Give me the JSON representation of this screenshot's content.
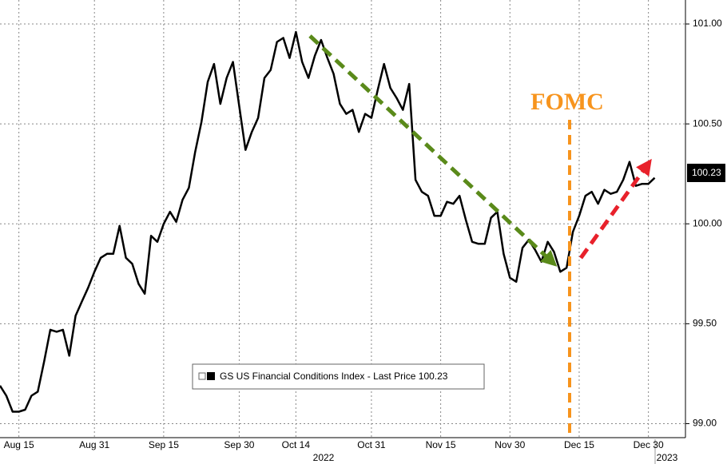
{
  "chart_data": {
    "type": "line",
    "annotations": {
      "event": "FOMC"
    },
    "year_labels": [
      "2022",
      "2023"
    ],
    "categories": [
      null,
      null,
      null,
      "Aug 15",
      null,
      null,
      null,
      null,
      null,
      null,
      null,
      null,
      null,
      null,
      null,
      "Aug 31",
      null,
      null,
      null,
      null,
      null,
      null,
      null,
      null,
      null,
      null,
      "Sep 15",
      null,
      null,
      null,
      null,
      null,
      null,
      null,
      null,
      null,
      null,
      null,
      "Sep 30",
      null,
      null,
      null,
      null,
      null,
      null,
      null,
      null,
      "Oct 14",
      null,
      null,
      null,
      null,
      null,
      null,
      null,
      null,
      null,
      null,
      null,
      "Oct 31",
      null,
      null,
      null,
      null,
      null,
      null,
      null,
      null,
      null,
      null,
      "Nov 15",
      null,
      null,
      null,
      null,
      null,
      null,
      null,
      null,
      null,
      null,
      "Nov 30",
      null,
      null,
      null,
      null,
      null,
      null,
      null,
      null,
      null,
      null,
      "Dec 15",
      null,
      null,
      null,
      null,
      null,
      null,
      null,
      null,
      null,
      null,
      "Dec 30",
      null
    ],
    "series": [
      {
        "name": "GS US Financial Conditions Index - Last Price 100.23",
        "color": "#000000",
        "values": [
          99.19,
          99.14,
          99.06,
          99.06,
          99.07,
          99.14,
          99.16,
          99.31,
          99.47,
          99.46,
          99.47,
          99.34,
          99.54,
          99.61,
          99.68,
          99.76,
          99.83,
          99.85,
          99.85,
          99.99,
          99.83,
          99.8,
          99.7,
          99.65,
          99.94,
          99.91,
          100.0,
          100.06,
          100.01,
          100.12,
          100.18,
          100.36,
          100.51,
          100.71,
          100.8,
          100.6,
          100.73,
          100.81,
          100.59,
          100.37,
          100.46,
          100.53,
          100.73,
          100.77,
          100.91,
          100.93,
          100.83,
          100.96,
          100.81,
          100.73,
          100.84,
          100.92,
          100.83,
          100.75,
          100.6,
          100.55,
          100.57,
          100.46,
          100.55,
          100.53,
          100.67,
          100.8,
          100.68,
          100.63,
          100.57,
          100.7,
          100.22,
          100.16,
          100.14,
          100.04,
          100.04,
          100.11,
          100.1,
          100.14,
          100.02,
          99.91,
          99.9,
          99.9,
          100.03,
          100.06,
          99.85,
          99.73,
          99.71,
          99.88,
          99.92,
          99.87,
          99.81,
          99.91,
          99.86,
          99.76,
          99.78,
          99.96,
          100.04,
          100.14,
          100.16,
          100.1,
          100.17,
          100.15,
          100.16,
          100.22,
          100.31,
          100.19,
          100.2,
          100.2,
          100.23
        ]
      }
    ],
    "ylim": [
      98.93,
      101.12
    ],
    "yticks": [
      {
        "value": 99,
        "label": "99.00"
      },
      {
        "value": 99.5,
        "label": "99.50"
      },
      {
        "value": 100,
        "label": "100.00"
      },
      {
        "value": 100.5,
        "label": "100.50"
      },
      {
        "value": 101,
        "label": "101.00"
      }
    ],
    "grid": true
  }
}
